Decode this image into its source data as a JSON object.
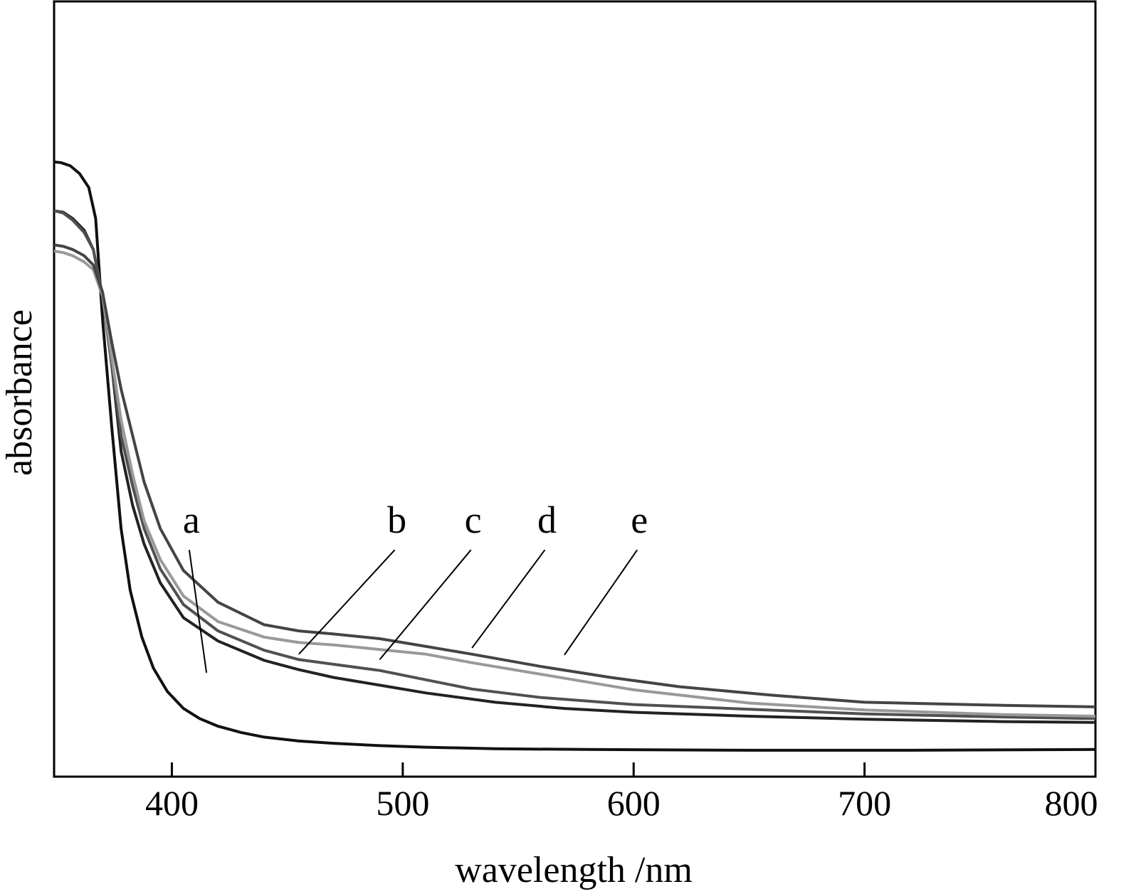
{
  "chart_data": {
    "type": "line",
    "xlabel": "wavelength /nm",
    "ylabel": "absorbance",
    "xlim": [
      349,
      800
    ],
    "ylim": [
      0,
      1
    ],
    "x_ticks": [
      400,
      500,
      600,
      700,
      800
    ],
    "y_ticks_shown": false,
    "grid": false,
    "legend": "none",
    "series": [
      {
        "name": "a",
        "color": "#111111",
        "points": [
          [
            349,
            0.793
          ],
          [
            352,
            0.792
          ],
          [
            356,
            0.788
          ],
          [
            360,
            0.778
          ],
          [
            364,
            0.76
          ],
          [
            367,
            0.72
          ],
          [
            370,
            0.59
          ],
          [
            374,
            0.45
          ],
          [
            378,
            0.32
          ],
          [
            382,
            0.24
          ],
          [
            387,
            0.18
          ],
          [
            392,
            0.14
          ],
          [
            398,
            0.11
          ],
          [
            405,
            0.088
          ],
          [
            412,
            0.075
          ],
          [
            420,
            0.065
          ],
          [
            430,
            0.057
          ],
          [
            440,
            0.051
          ],
          [
            455,
            0.046
          ],
          [
            470,
            0.043
          ],
          [
            490,
            0.04
          ],
          [
            510,
            0.038
          ],
          [
            540,
            0.036
          ],
          [
            580,
            0.035
          ],
          [
            650,
            0.034
          ],
          [
            720,
            0.034
          ],
          [
            800,
            0.035
          ]
        ]
      },
      {
        "name": "b",
        "color": "#222222",
        "points": [
          [
            349,
            0.73
          ],
          [
            353,
            0.728
          ],
          [
            357,
            0.72
          ],
          [
            362,
            0.705
          ],
          [
            366,
            0.68
          ],
          [
            370,
            0.62
          ],
          [
            374,
            0.53
          ],
          [
            378,
            0.42
          ],
          [
            383,
            0.35
          ],
          [
            388,
            0.3
          ],
          [
            395,
            0.25
          ],
          [
            405,
            0.205
          ],
          [
            420,
            0.175
          ],
          [
            440,
            0.15
          ],
          [
            455,
            0.138
          ],
          [
            470,
            0.128
          ],
          [
            490,
            0.118
          ],
          [
            510,
            0.108
          ],
          [
            540,
            0.096
          ],
          [
            570,
            0.088
          ],
          [
            600,
            0.083
          ],
          [
            650,
            0.078
          ],
          [
            700,
            0.074
          ],
          [
            760,
            0.071
          ],
          [
            800,
            0.07
          ]
        ]
      },
      {
        "name": "c",
        "color": "#505050",
        "points": [
          [
            349,
            0.73
          ],
          [
            353,
            0.727
          ],
          [
            357,
            0.718
          ],
          [
            362,
            0.702
          ],
          [
            366,
            0.68
          ],
          [
            370,
            0.62
          ],
          [
            374,
            0.53
          ],
          [
            378,
            0.44
          ],
          [
            383,
            0.375
          ],
          [
            388,
            0.32
          ],
          [
            395,
            0.268
          ],
          [
            405,
            0.222
          ],
          [
            420,
            0.188
          ],
          [
            440,
            0.163
          ],
          [
            455,
            0.151
          ],
          [
            470,
            0.145
          ],
          [
            490,
            0.137
          ],
          [
            510,
            0.125
          ],
          [
            530,
            0.113
          ],
          [
            560,
            0.102
          ],
          [
            600,
            0.093
          ],
          [
            650,
            0.087
          ],
          [
            700,
            0.081
          ],
          [
            760,
            0.077
          ],
          [
            800,
            0.075
          ]
        ]
      },
      {
        "name": "d",
        "color": "#999999",
        "points": [
          [
            349,
            0.678
          ],
          [
            353,
            0.676
          ],
          [
            357,
            0.672
          ],
          [
            362,
            0.664
          ],
          [
            366,
            0.654
          ],
          [
            370,
            0.62
          ],
          [
            374,
            0.54
          ],
          [
            378,
            0.46
          ],
          [
            383,
            0.39
          ],
          [
            388,
            0.33
          ],
          [
            395,
            0.28
          ],
          [
            405,
            0.233
          ],
          [
            420,
            0.2
          ],
          [
            440,
            0.18
          ],
          [
            455,
            0.173
          ],
          [
            470,
            0.17
          ],
          [
            490,
            0.164
          ],
          [
            510,
            0.158
          ],
          [
            530,
            0.147
          ],
          [
            560,
            0.132
          ],
          [
            600,
            0.112
          ],
          [
            650,
            0.095
          ],
          [
            700,
            0.086
          ],
          [
            760,
            0.08
          ],
          [
            800,
            0.078
          ]
        ]
      },
      {
        "name": "e",
        "color": "#444444",
        "points": [
          [
            349,
            0.686
          ],
          [
            353,
            0.684
          ],
          [
            357,
            0.68
          ],
          [
            362,
            0.672
          ],
          [
            366,
            0.66
          ],
          [
            370,
            0.625
          ],
          [
            374,
            0.56
          ],
          [
            378,
            0.5
          ],
          [
            383,
            0.44
          ],
          [
            388,
            0.38
          ],
          [
            395,
            0.32
          ],
          [
            405,
            0.266
          ],
          [
            420,
            0.225
          ],
          [
            440,
            0.196
          ],
          [
            455,
            0.188
          ],
          [
            470,
            0.184
          ],
          [
            490,
            0.178
          ],
          [
            510,
            0.168
          ],
          [
            530,
            0.158
          ],
          [
            560,
            0.142
          ],
          [
            590,
            0.128
          ],
          [
            620,
            0.116
          ],
          [
            660,
            0.105
          ],
          [
            700,
            0.096
          ],
          [
            760,
            0.092
          ],
          [
            800,
            0.09
          ]
        ]
      }
    ],
    "annotations": [
      {
        "text": "a",
        "x": 406,
        "y": 0.32,
        "tip_x": 415,
        "tip_y": 0.134
      },
      {
        "text": "b",
        "x": 495,
        "y": 0.32,
        "tip_x": 455,
        "tip_y": 0.158
      },
      {
        "text": "c",
        "x": 528,
        "y": 0.32,
        "tip_x": 490,
        "tip_y": 0.151
      },
      {
        "text": "d",
        "x": 560,
        "y": 0.32,
        "tip_x": 530,
        "tip_y": 0.166
      },
      {
        "text": "e",
        "x": 600,
        "y": 0.32,
        "tip_x": 570,
        "tip_y": 0.157
      }
    ]
  }
}
